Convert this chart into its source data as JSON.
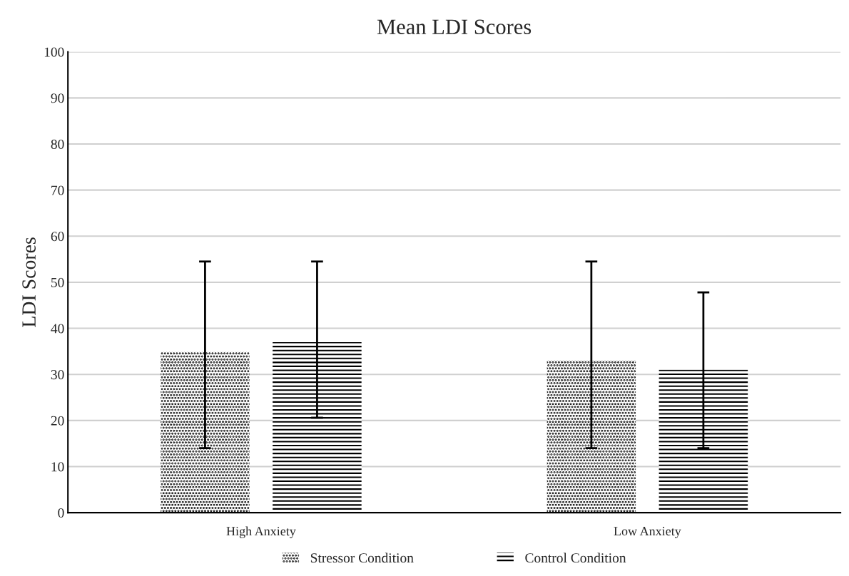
{
  "chart_data": {
    "type": "bar",
    "title": "Mean LDI Scores",
    "ylabel": "LDI Scores",
    "categories": [
      "High Anxiety",
      "Low Anxiety"
    ],
    "series": [
      {
        "name": "Stressor Condition",
        "color": "#000000",
        "values": [
          35,
          33
        ],
        "errors": [
          [
            14,
            54.5
          ],
          [
            14,
            54.5
          ]
        ]
      },
      {
        "name": "Control Condition",
        "color": "#000000",
        "values": [
          37,
          31
        ],
        "errors": [
          [
            20.6,
            54.5
          ],
          [
            14,
            47.8
          ]
        ]
      }
    ],
    "ylim": [
      0,
      100
    ],
    "yticks": [
      0,
      10,
      20,
      30,
      40,
      50,
      60,
      70,
      80,
      90,
      100
    ],
    "grid": "y",
    "legend": "bottom"
  }
}
